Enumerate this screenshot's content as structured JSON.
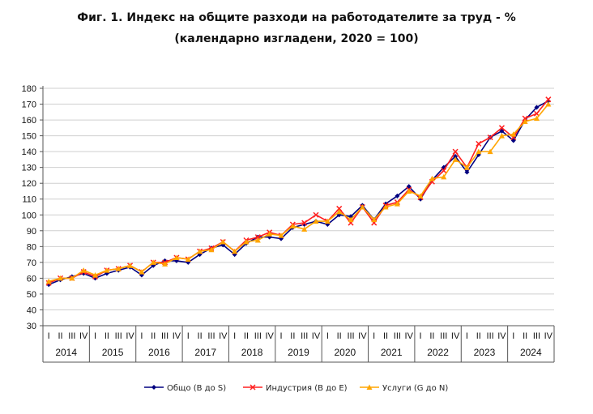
{
  "chart_data": {
    "type": "line",
    "title": "Фиг. 1. Индекс на общите разходи на работодателите за труд - %",
    "subtitle": "(календарно изгладени, 2020 = 100)",
    "xlabel": "",
    "ylabel": "",
    "ylim": [
      30,
      180
    ],
    "yticks": [
      30,
      40,
      50,
      60,
      70,
      80,
      90,
      100,
      110,
      120,
      130,
      140,
      150,
      160,
      170,
      180
    ],
    "grid": true,
    "legend": "bottom",
    "quarters": [
      "I",
      "II",
      "III",
      "IV"
    ],
    "years": [
      "2014",
      "2015",
      "2016",
      "2017",
      "2018",
      "2019",
      "2020",
      "2021",
      "2022",
      "2023",
      "2024"
    ],
    "series": [
      {
        "name": "Общо (B до S)",
        "color": "#000080",
        "marker": "diamond",
        "values": [
          56,
          59,
          61,
          63,
          60,
          63,
          65,
          67,
          62,
          68,
          71,
          71,
          70,
          75,
          79,
          81,
          75,
          82,
          86,
          86,
          85,
          92,
          94,
          96,
          94,
          100,
          99,
          106,
          97,
          107,
          112,
          118,
          110,
          122,
          130,
          137,
          127,
          138,
          149,
          153,
          147,
          160,
          168,
          172
        ]
      },
      {
        "name": "Индустрия (B до E)",
        "color": "#ff2020",
        "marker": "x",
        "values": [
          57,
          60,
          60,
          64,
          61,
          65,
          66,
          68,
          64,
          70,
          70,
          73,
          72,
          77,
          79,
          83,
          77,
          84,
          86,
          89,
          87,
          94,
          95,
          100,
          96,
          104,
          95,
          105,
          95,
          106,
          108,
          116,
          111,
          121,
          128,
          140,
          130,
          145,
          149,
          155,
          149,
          161,
          164,
          173
        ]
      },
      {
        "name": "Услуги (G до N)",
        "color": "#ffa500",
        "marker": "triangle",
        "values": [
          58,
          60,
          60,
          65,
          62,
          65,
          66,
          68,
          64,
          70,
          69,
          73,
          72,
          77,
          78,
          83,
          77,
          83,
          84,
          88,
          87,
          93,
          91,
          96,
          96,
          102,
          97,
          105,
          97,
          105,
          107,
          115,
          112,
          123,
          124,
          135,
          130,
          140,
          140,
          150,
          151,
          159,
          161,
          170
        ]
      }
    ]
  }
}
